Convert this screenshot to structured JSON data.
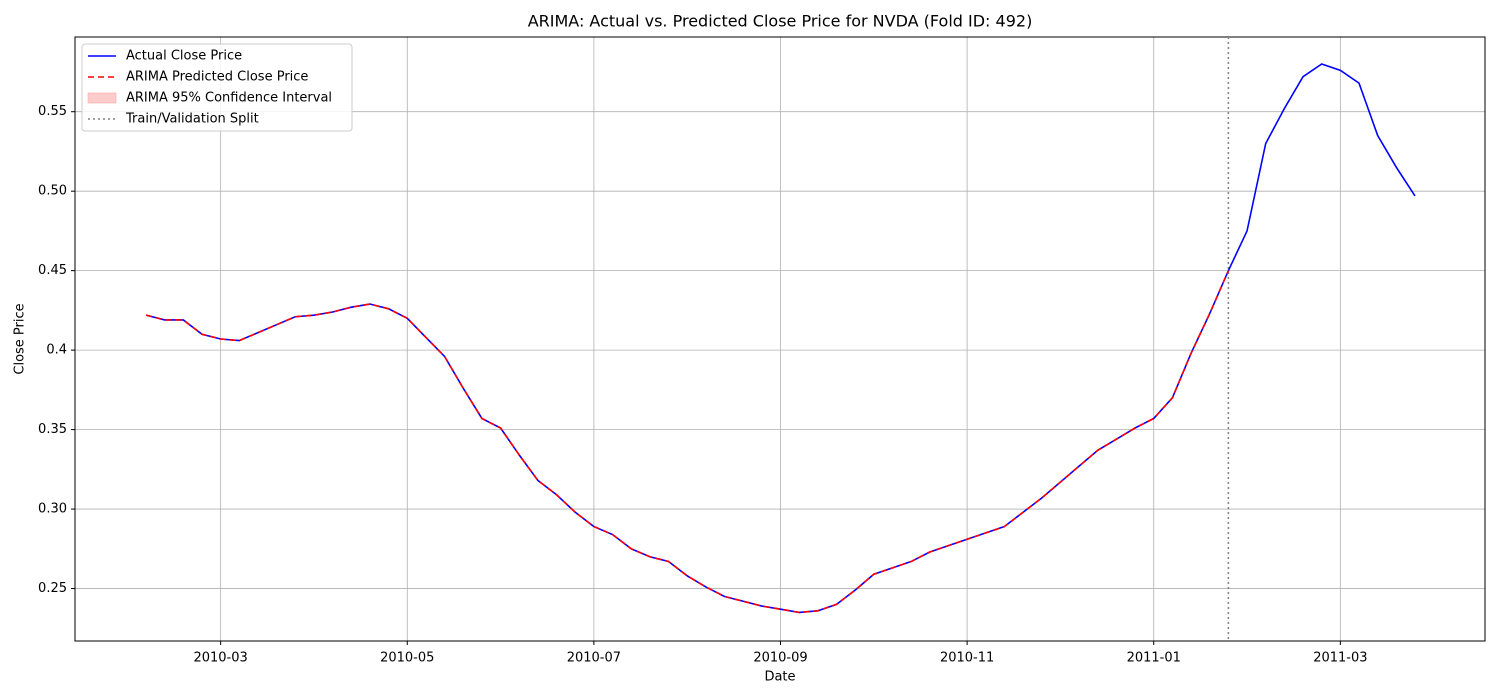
{
  "chart_data": {
    "type": "line",
    "title": "ARIMA: Actual vs. Predicted Close Price for NVDA (Fold ID: 492)",
    "x_label": "Date",
    "y_label": "Close Price",
    "categories": [
      null,
      null,
      null,
      null,
      "2010-03",
      null,
      null,
      null,
      null,
      null,
      null,
      null,
      null,
      null,
      "2010-05",
      null,
      null,
      null,
      null,
      null,
      null,
      null,
      null,
      null,
      "2010-07",
      null,
      null,
      null,
      null,
      null,
      null,
      null,
      null,
      null,
      "2010-09",
      null,
      null,
      null,
      null,
      null,
      null,
      null,
      null,
      null,
      "2010-11",
      null,
      null,
      null,
      null,
      null,
      null,
      null,
      null,
      null,
      "2011-01",
      null,
      null,
      null,
      null,
      null,
      null,
      null,
      null,
      null,
      "2011-03",
      null,
      null,
      null,
      null
    ],
    "series": [
      {
        "name": "Actual Close Price",
        "color": "#0000ff",
        "dash": false,
        "values": [
          0.422,
          0.419,
          0.419,
          0.41,
          0.407,
          0.406,
          0.411,
          0.416,
          0.421,
          0.422,
          0.424,
          0.427,
          0.429,
          0.426,
          0.42,
          0.408,
          0.396,
          0.376,
          0.357,
          0.351,
          0.334,
          0.318,
          0.309,
          0.298,
          0.289,
          0.284,
          0.275,
          0.27,
          0.267,
          0.258,
          0.251,
          0.245,
          0.242,
          0.239,
          0.237,
          0.235,
          0.236,
          0.24,
          0.249,
          0.259,
          0.263,
          0.267,
          0.273,
          0.277,
          0.281,
          0.285,
          0.289,
          0.298,
          0.307,
          0.317,
          0.327,
          0.337,
          0.344,
          0.351,
          0.357,
          0.37,
          0.398,
          0.423,
          0.45,
          0.475,
          0.53,
          0.552,
          0.572,
          0.58,
          0.576,
          0.568,
          0.535,
          0.515,
          0.497
        ]
      },
      {
        "name": "ARIMA Predicted Close Price",
        "color": "#ff0000",
        "dash": true,
        "values": [
          0.422,
          0.419,
          0.419,
          0.41,
          0.407,
          0.406,
          0.411,
          0.416,
          0.421,
          0.422,
          0.424,
          0.427,
          0.429,
          0.426,
          0.42,
          0.408,
          0.396,
          0.376,
          0.357,
          0.351,
          0.334,
          0.318,
          0.309,
          0.298,
          0.289,
          0.284,
          0.275,
          0.27,
          0.267,
          0.258,
          0.251,
          0.245,
          0.242,
          0.239,
          0.237,
          0.235,
          0.236,
          0.24,
          0.249,
          0.259,
          0.263,
          0.267,
          0.273,
          0.277,
          0.281,
          0.285,
          0.289,
          0.298,
          0.307,
          0.317,
          0.327,
          0.337,
          0.344,
          0.351,
          0.357,
          0.37,
          0.398,
          0.423,
          0.45,
          null,
          null,
          null,
          null,
          null,
          null,
          null,
          null,
          null,
          null
        ]
      }
    ],
    "band": {
      "name": "ARIMA 95% Confidence Interval",
      "color": "#ffcccc"
    },
    "split": {
      "name": "Train/Validation Split",
      "color": "#808080"
    },
    "ylim": [
      0.217,
      0.597
    ],
    "yticks": [
      0.25,
      {
        "value": 0.3,
        "label": "0.30"
      },
      0.35,
      0.4,
      0.45,
      {
        "value": 0.5,
        "label": "0.50"
      },
      0.55
    ],
    "grid": true,
    "legend": "upper left"
  }
}
